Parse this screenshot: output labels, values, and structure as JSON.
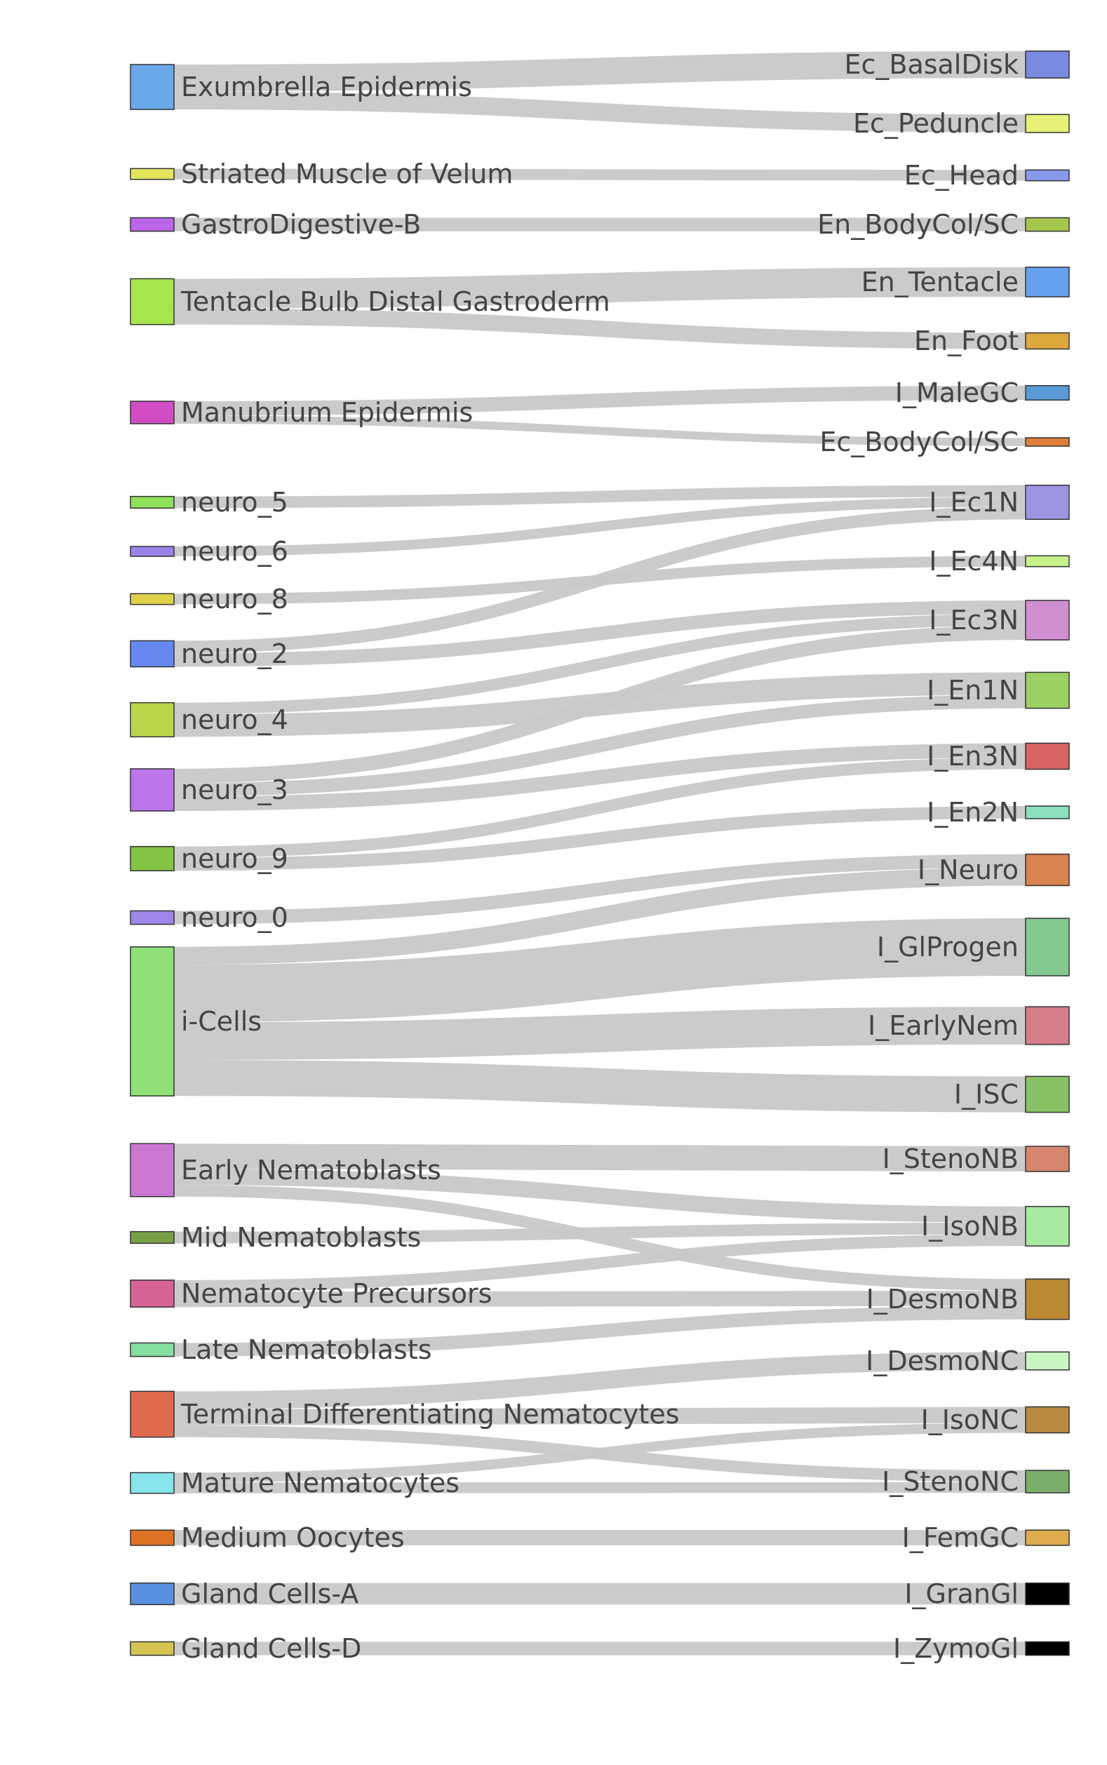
{
  "diagram": {
    "type": "sankey",
    "link_color": "#c8c8c8",
    "sources": [
      {
        "id": "s_exumbrella",
        "label": "Exumbrella Epidermis",
        "color": "#6aa8ea"
      },
      {
        "id": "s_striated",
        "label": "Striated Muscle of Velum",
        "color": "#e2e55c"
      },
      {
        "id": "s_gastro",
        "label": "GastroDigestive-B",
        "color": "#bb66ea"
      },
      {
        "id": "s_tentacle",
        "label": "Tentacle Bulb Distal Gastroderm",
        "color": "#a6e64c"
      },
      {
        "id": "s_manubrium",
        "label": "Manubrium Epidermis",
        "color": "#d24dc4"
      },
      {
        "id": "s_neuro5",
        "label": "neuro_5",
        "color": "#8fe05d"
      },
      {
        "id": "s_neuro6",
        "label": "neuro_6",
        "color": "#9a82ea"
      },
      {
        "id": "s_neuro8",
        "label": "neuro_8",
        "color": "#dfd14a"
      },
      {
        "id": "s_neuro2",
        "label": "neuro_2",
        "color": "#6688ef"
      },
      {
        "id": "s_neuro4",
        "label": "neuro_4",
        "color": "#bcd64b"
      },
      {
        "id": "s_neuro3",
        "label": "neuro_3",
        "color": "#bb75e9"
      },
      {
        "id": "s_neuro9",
        "label": "neuro_9",
        "color": "#84c445"
      },
      {
        "id": "s_neuro0",
        "label": "neuro_0",
        "color": "#9e87e8"
      },
      {
        "id": "s_icells",
        "label": "i-Cells",
        "color": "#8fe078"
      },
      {
        "id": "s_early",
        "label": "Early Nematoblasts",
        "color": "#cc77d3"
      },
      {
        "id": "s_mid",
        "label": "Mid Nematoblasts",
        "color": "#77a046"
      },
      {
        "id": "s_precursors",
        "label": "Nematocyte Precursors",
        "color": "#d66497"
      },
      {
        "id": "s_late",
        "label": "Late Nematoblasts",
        "color": "#84e0a0"
      },
      {
        "id": "s_terminal",
        "label": "Terminal Differentiating Nematocytes",
        "color": "#df6a4f"
      },
      {
        "id": "s_mature",
        "label": "Mature Nematocytes",
        "color": "#86e4ea"
      },
      {
        "id": "s_oocytes",
        "label": "Medium Oocytes",
        "color": "#dd7224"
      },
      {
        "id": "s_glandA",
        "label": "Gland Cells-A",
        "color": "#5a8fe0"
      },
      {
        "id": "s_glandD",
        "label": "Gland Cells-D",
        "color": "#d6c452"
      }
    ],
    "targets": [
      {
        "id": "t_basaldisk",
        "label": "Ec_BasalDisk",
        "color": "#7a8ae0"
      },
      {
        "id": "t_peduncle",
        "label": "Ec_Peduncle",
        "color": "#e8f077"
      },
      {
        "id": "t_head",
        "label": "Ec_Head",
        "color": "#8898ea"
      },
      {
        "id": "t_bodycol_en",
        "label": "En_BodyCol/SC",
        "color": "#a6c74e"
      },
      {
        "id": "t_ententacle",
        "label": "En_Tentacle",
        "color": "#66a1ef"
      },
      {
        "id": "t_foot",
        "label": "En_Foot",
        "color": "#dca83b"
      },
      {
        "id": "t_malegc",
        "label": "I_MaleGC",
        "color": "#5a9ad6"
      },
      {
        "id": "t_bodycol_ec",
        "label": "Ec_BodyCol/SC",
        "color": "#de7e3a"
      },
      {
        "id": "t_ec1n",
        "label": "I_Ec1N",
        "color": "#9c95e2"
      },
      {
        "id": "t_ec4n",
        "label": "I_Ec4N",
        "color": "#c9f28a"
      },
      {
        "id": "t_ec3n",
        "label": "I_Ec3N",
        "color": "#cf8fd0"
      },
      {
        "id": "t_en1n",
        "label": "I_En1N",
        "color": "#9bd062"
      },
      {
        "id": "t_en3n",
        "label": "I_En3N",
        "color": "#d86363"
      },
      {
        "id": "t_en2n",
        "label": "I_En2N",
        "color": "#8ce0bc"
      },
      {
        "id": "t_ineuro",
        "label": "I_Neuro",
        "color": "#d88350"
      },
      {
        "id": "t_glprogen",
        "label": "I_GlProgen",
        "color": "#84c98f"
      },
      {
        "id": "t_earlynem",
        "label": "I_EarlyNem",
        "color": "#d67d8a"
      },
      {
        "id": "t_isc",
        "label": "I_ISC",
        "color": "#88c266"
      },
      {
        "id": "t_stenonb",
        "label": "I_StenoNB",
        "color": "#d6866f"
      },
      {
        "id": "t_isonb",
        "label": "I_IsoNB",
        "color": "#a8eaa0"
      },
      {
        "id": "t_desmonb",
        "label": "I_DesmoNB",
        "color": "#b98831"
      },
      {
        "id": "t_desmonc",
        "label": "I_DesmoNC",
        "color": "#c9f5c2"
      },
      {
        "id": "t_isonc",
        "label": "I_IsoNC",
        "color": "#b98a40"
      },
      {
        "id": "t_stenonc",
        "label": "I_StenoNC",
        "color": "#78ae68"
      },
      {
        "id": "t_femgc",
        "label": "I_FemGC",
        "color": "#deac4d"
      },
      {
        "id": "t_grangl",
        "label": "I_GranGl",
        "color": "#000000"
      },
      {
        "id": "t_zymogl",
        "label": "I_ZymoGl",
        "color": "#000000"
      }
    ],
    "links": [
      {
        "source": "s_exumbrella",
        "target": "t_basaldisk",
        "value": 30
      },
      {
        "source": "s_exumbrella",
        "target": "t_peduncle",
        "value": 20
      },
      {
        "source": "s_striated",
        "target": "t_head",
        "value": 12
      },
      {
        "source": "s_gastro",
        "target": "t_bodycol_en",
        "value": 15
      },
      {
        "source": "s_tentacle",
        "target": "t_ententacle",
        "value": 33
      },
      {
        "source": "s_tentacle",
        "target": "t_foot",
        "value": 18
      },
      {
        "source": "s_manubrium",
        "target": "t_malegc",
        "value": 16
      },
      {
        "source": "s_manubrium",
        "target": "t_bodycol_ec",
        "value": 9
      },
      {
        "source": "s_neuro5",
        "target": "t_ec1n",
        "value": 13
      },
      {
        "source": "s_neuro6",
        "target": "t_ec1n",
        "value": 11
      },
      {
        "source": "s_neuro8",
        "target": "t_ec4n",
        "value": 12
      },
      {
        "source": "s_neuro2",
        "target": "t_ec1n",
        "value": 14
      },
      {
        "source": "s_neuro2",
        "target": "t_ec3n",
        "value": 15
      },
      {
        "source": "s_neuro4",
        "target": "t_en1n",
        "value": 25
      },
      {
        "source": "s_neuro4",
        "target": "t_ec3n",
        "value": 13
      },
      {
        "source": "s_neuro3",
        "target": "t_ec3n",
        "value": 16
      },
      {
        "source": "s_neuro3",
        "target": "t_en1n",
        "value": 15
      },
      {
        "source": "s_neuro3",
        "target": "t_en3n",
        "value": 16
      },
      {
        "source": "s_neuro9",
        "target": "t_en3n",
        "value": 13
      },
      {
        "source": "s_neuro9",
        "target": "t_en2n",
        "value": 14
      },
      {
        "source": "s_neuro0",
        "target": "t_ineuro",
        "value": 15
      },
      {
        "source": "s_icells",
        "target": "t_ineuro",
        "value": 20
      },
      {
        "source": "s_icells",
        "target": "t_glprogen",
        "value": 64
      },
      {
        "source": "s_icells",
        "target": "t_earlynem",
        "value": 42
      },
      {
        "source": "s_icells",
        "target": "t_isc",
        "value": 40
      },
      {
        "source": "s_early",
        "target": "t_stenonb",
        "value": 28
      },
      {
        "source": "s_early",
        "target": "t_isonb",
        "value": 18
      },
      {
        "source": "s_early",
        "target": "t_desmonb",
        "value": 13
      },
      {
        "source": "s_mid",
        "target": "t_isonb",
        "value": 13
      },
      {
        "source": "s_precursors",
        "target": "t_isonb",
        "value": 13
      },
      {
        "source": "s_precursors",
        "target": "t_desmonb",
        "value": 17
      },
      {
        "source": "s_late",
        "target": "t_desmonb",
        "value": 15
      },
      {
        "source": "s_terminal",
        "target": "t_desmonc",
        "value": 20
      },
      {
        "source": "s_terminal",
        "target": "t_isonc",
        "value": 18
      },
      {
        "source": "s_terminal",
        "target": "t_stenonc",
        "value": 13
      },
      {
        "source": "s_mature",
        "target": "t_isonc",
        "value": 11
      },
      {
        "source": "s_mature",
        "target": "t_stenonc",
        "value": 12
      },
      {
        "source": "s_oocytes",
        "target": "t_femgc",
        "value": 17
      },
      {
        "source": "s_glandA",
        "target": "t_grangl",
        "value": 24
      },
      {
        "source": "s_glandD",
        "target": "t_zymogl",
        "value": 15
      }
    ]
  }
}
